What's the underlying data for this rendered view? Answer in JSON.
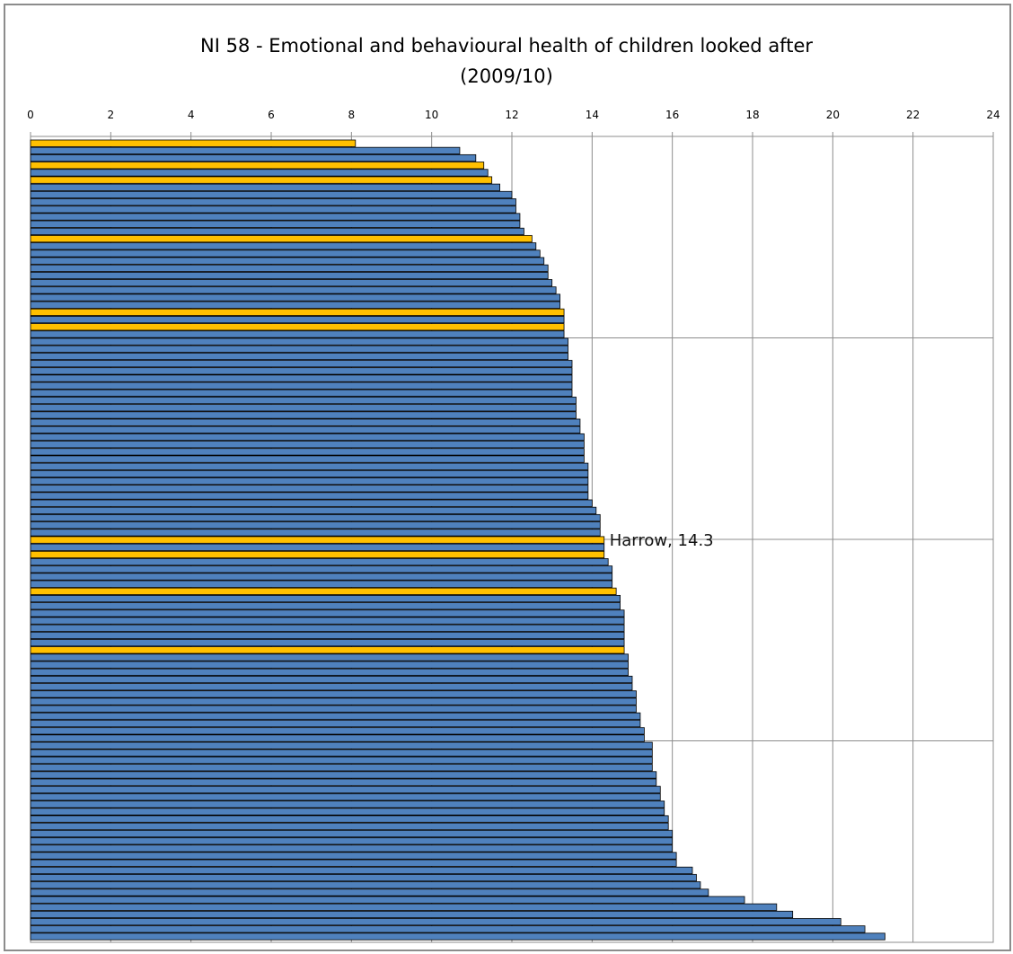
{
  "chart_data": {
    "type": "bar",
    "orientation": "horizontal",
    "title_line1": "NI 58 - Emotional  and behavioural health of children looked after",
    "title_line2": "(2009/10)",
    "xlabel": "",
    "ylabel": "",
    "xlim": [
      0,
      24
    ],
    "x_ticks": [
      0,
      2,
      4,
      6,
      8,
      10,
      12,
      14,
      16,
      18,
      20,
      22,
      24
    ],
    "x_axis_position": "top",
    "grid": true,
    "legend": "none",
    "values": [
      8.1,
      10.7,
      11.1,
      11.3,
      11.4,
      11.5,
      11.7,
      12.0,
      12.1,
      12.1,
      12.2,
      12.2,
      12.3,
      12.5,
      12.6,
      12.7,
      12.8,
      12.9,
      12.9,
      13.0,
      13.1,
      13.2,
      13.2,
      13.3,
      13.3,
      13.3,
      13.3,
      13.4,
      13.4,
      13.4,
      13.5,
      13.5,
      13.5,
      13.5,
      13.5,
      13.6,
      13.6,
      13.6,
      13.7,
      13.7,
      13.8,
      13.8,
      13.8,
      13.8,
      13.9,
      13.9,
      13.9,
      13.9,
      13.9,
      14.0,
      14.1,
      14.2,
      14.2,
      14.2,
      14.3,
      14.3,
      14.3,
      14.4,
      14.5,
      14.5,
      14.5,
      14.6,
      14.7,
      14.7,
      14.8,
      14.8,
      14.8,
      14.8,
      14.8,
      14.8,
      14.9,
      14.9,
      14.9,
      15.0,
      15.0,
      15.1,
      15.1,
      15.1,
      15.2,
      15.2,
      15.3,
      15.3,
      15.5,
      15.5,
      15.5,
      15.5,
      15.6,
      15.6,
      15.7,
      15.7,
      15.8,
      15.8,
      15.9,
      15.9,
      16.0,
      16.0,
      16.0,
      16.1,
      16.1,
      16.5,
      16.6,
      16.7,
      16.9,
      17.8,
      18.6,
      19.0,
      20.2,
      20.8,
      21.3
    ],
    "highlight_indices": [
      0,
      3,
      5,
      13,
      23,
      25,
      54,
      56,
      61,
      69
    ],
    "annotation": {
      "index": 54,
      "text": "Harrow, 14.3"
    },
    "colors": {
      "bar": "#4f81bd",
      "highlight": "#ffc000",
      "bar_edge": "#000000",
      "grid": "#8c8c8c",
      "frame": "#8c8c8c"
    }
  }
}
